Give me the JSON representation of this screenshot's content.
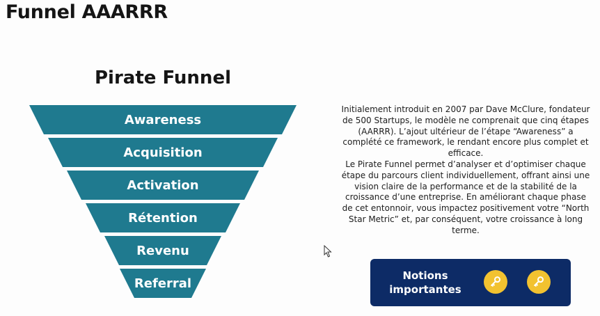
{
  "page": {
    "title": "Funnel AAARRR"
  },
  "funnel": {
    "title": "Pirate Funnel",
    "stages": [
      "Awareness",
      "Acquisition",
      "Activation",
      "Rétention",
      "Revenu",
      "Referral"
    ],
    "color": "#1f7a8f"
  },
  "description": {
    "paragraph1": "Initialement introduit en 2007 par Dave McClure, fondateur de 500 Startups, le modèle ne comprenait que cinq étapes (AARRR). L’ajout ultérieur de l’étape “Awareness” a complété ce framework, le rendant encore plus complet et efficace.",
    "paragraph2": "Le Pirate Funnel permet d’analyser et d’optimiser chaque étape du parcours client individuellement, offrant ainsi une vision claire de la performance et de la stabilité de la croissance d’une entreprise. En améliorant chaque phase de cet entonnoir, vous impactez positivement votre “North Star Metric” et, par conséquent, votre croissance à long terme."
  },
  "notions": {
    "label_line1": "Notions",
    "label_line2": "importantes",
    "background": "#0d2b66",
    "key_color": "#f2c230",
    "icons": [
      "key-icon",
      "key-icon"
    ]
  }
}
